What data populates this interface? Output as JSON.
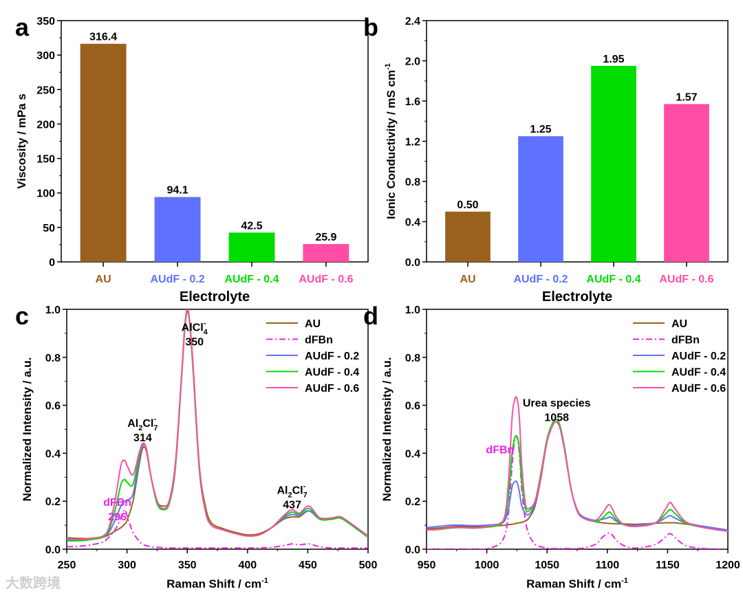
{
  "colors": {
    "AU": "#9A611E",
    "AUdF - 0.2": "#5F72FF",
    "AUdF - 0.4": "#00DD00",
    "AUdF - 0.6": "#FF4DA6",
    "dFBn": "#EE22EE",
    "axis": "#000000"
  },
  "watermark": "大数跨境",
  "chart_data": [
    {
      "panel": "a",
      "type": "bar",
      "categories": [
        "AU",
        "AUdF - 0.2",
        "AUdF - 0.4",
        "AUdF - 0.6"
      ],
      "values": [
        316.4,
        94.1,
        42.5,
        25.9
      ],
      "value_labels": [
        "316.4",
        "94.1",
        "42.5",
        "25.9"
      ],
      "xlabel": "Electrolyte",
      "ylabel": "Viscosity / mPa s",
      "ylim": [
        0,
        350
      ],
      "yticks": [
        0,
        50,
        100,
        150,
        200,
        250,
        300,
        350
      ],
      "ytick_labels": [
        "0",
        "50",
        "100",
        "150",
        "200",
        "250",
        "300",
        "350"
      ]
    },
    {
      "panel": "b",
      "type": "bar",
      "categories": [
        "AU",
        "AUdF - 0.2",
        "AUdF - 0.4",
        "AUdF - 0.6"
      ],
      "values": [
        0.5,
        1.25,
        1.95,
        1.57
      ],
      "value_labels": [
        "0.50",
        "1.25",
        "1.95",
        "1.57"
      ],
      "xlabel": "Electrolyte",
      "ylabel": "Ionic Conductivity / mS cm",
      "ylabel_sup": "-1",
      "ylim": [
        0,
        2.4
      ],
      "yticks": [
        0,
        0.4,
        0.8,
        1.2,
        1.6,
        2.0,
        2.4
      ],
      "ytick_labels": [
        "0.0",
        "0.4",
        "0.8",
        "1.2",
        "1.6",
        "2.0",
        "2.4"
      ]
    },
    {
      "panel": "c",
      "type": "line",
      "xlabel": "Raman Shift / cm",
      "xlabel_sup": "-1",
      "ylabel": "Normalized Intensity / a.u.",
      "xlim": [
        250,
        500
      ],
      "ylim": [
        0,
        1.0
      ],
      "xticks": [
        250,
        300,
        350,
        400,
        450,
        500
      ],
      "xtick_labels": [
        "250",
        "300",
        "350",
        "400",
        "450",
        "500"
      ],
      "yticks": [
        0,
        0.2,
        0.4,
        0.6,
        0.8,
        1.0
      ],
      "ytick_labels": [
        "0.0",
        "0.2",
        "0.4",
        "0.6",
        "0.8",
        "1.0"
      ],
      "legend": "top-right",
      "x": [
        250,
        260,
        270,
        280,
        285,
        290,
        295,
        298,
        300,
        305,
        310,
        313,
        316,
        320,
        325,
        330,
        335,
        340,
        345,
        348,
        350,
        352,
        355,
        360,
        365,
        370,
        380,
        390,
        400,
        410,
        420,
        430,
        437,
        443,
        451,
        460,
        470,
        477,
        485,
        500
      ],
      "series": [
        {
          "name": "AU",
          "style": "solid",
          "values": [
            0.048,
            0.045,
            0.045,
            0.05,
            0.06,
            0.075,
            0.09,
            0.105,
            0.12,
            0.2,
            0.35,
            0.42,
            0.41,
            0.3,
            0.2,
            0.18,
            0.2,
            0.35,
            0.7,
            0.93,
            0.99,
            0.95,
            0.75,
            0.35,
            0.18,
            0.11,
            0.085,
            0.07,
            0.06,
            0.065,
            0.09,
            0.125,
            0.135,
            0.135,
            0.16,
            0.13,
            0.13,
            0.135,
            0.11,
            0.055
          ]
        },
        {
          "name": "dFBn",
          "style": "dashdot",
          "values": [
            0.01,
            0.012,
            0.018,
            0.03,
            0.05,
            0.08,
            0.13,
            0.165,
            0.14,
            0.07,
            0.035,
            0.02,
            0.015,
            0.01,
            0.008,
            0.006,
            0.005,
            0.005,
            0.005,
            0.005,
            0.005,
            0.005,
            0.005,
            0.005,
            0.005,
            0.005,
            0.005,
            0.005,
            0.005,
            0.006,
            0.008,
            0.015,
            0.022,
            0.018,
            0.022,
            0.01,
            0.005,
            0.005,
            0.005,
            0.005
          ]
        },
        {
          "name": "AUdF - 0.2",
          "style": "solid",
          "values": [
            0.04,
            0.04,
            0.045,
            0.05,
            0.07,
            0.12,
            0.18,
            0.2,
            0.205,
            0.23,
            0.37,
            0.43,
            0.42,
            0.3,
            0.19,
            0.165,
            0.19,
            0.34,
            0.7,
            0.93,
            0.99,
            0.95,
            0.74,
            0.34,
            0.16,
            0.1,
            0.08,
            0.065,
            0.055,
            0.06,
            0.09,
            0.13,
            0.145,
            0.14,
            0.16,
            0.125,
            0.125,
            0.13,
            0.105,
            0.05
          ]
        },
        {
          "name": "AUdF - 0.4",
          "style": "solid",
          "values": [
            0.035,
            0.035,
            0.04,
            0.05,
            0.08,
            0.16,
            0.27,
            0.29,
            0.28,
            0.27,
            0.39,
            0.44,
            0.42,
            0.3,
            0.19,
            0.165,
            0.19,
            0.33,
            0.69,
            0.92,
            0.99,
            0.94,
            0.73,
            0.33,
            0.16,
            0.1,
            0.08,
            0.065,
            0.055,
            0.06,
            0.09,
            0.135,
            0.155,
            0.145,
            0.17,
            0.125,
            0.125,
            0.13,
            0.105,
            0.05
          ]
        },
        {
          "name": "AUdF - 0.6",
          "style": "solid",
          "values": [
            0.045,
            0.04,
            0.045,
            0.055,
            0.09,
            0.2,
            0.35,
            0.37,
            0.35,
            0.31,
            0.4,
            0.44,
            0.42,
            0.3,
            0.2,
            0.17,
            0.195,
            0.34,
            0.7,
            0.93,
            1.0,
            0.95,
            0.75,
            0.34,
            0.16,
            0.1,
            0.08,
            0.065,
            0.055,
            0.06,
            0.09,
            0.14,
            0.165,
            0.15,
            0.18,
            0.13,
            0.13,
            0.135,
            0.11,
            0.055
          ]
        }
      ],
      "annotations": [
        {
          "main": "AlCl",
          "sub": "4",
          "sup": "-",
          "value": "350",
          "x": 356,
          "y": 0.91,
          "color": "#000000"
        },
        {
          "main": "Al",
          "sub2": "2",
          "main2": "Cl",
          "sub": "7",
          "sup": "-",
          "value": "314",
          "x": 313,
          "y": 0.51,
          "color": "#000000"
        },
        {
          "main": "Al",
          "sub2": "2",
          "main2": "Cl",
          "sub": "7",
          "sup": "-",
          "value": "437",
          "x": 437,
          "y": 0.23,
          "color": "#000000"
        },
        {
          "main": "dFBn",
          "value": "296",
          "x": 292,
          "y": 0.18,
          "color": "#EE22EE"
        }
      ]
    },
    {
      "panel": "d",
      "type": "line",
      "xlabel": "Raman Shift / cm",
      "xlabel_sup": "-1",
      "ylabel": "Normalized Intensity / a.u.",
      "xlim": [
        950,
        1200
      ],
      "ylim": [
        0,
        1.0
      ],
      "xticks": [
        950,
        1000,
        1050,
        1100,
        1150,
        1200
      ],
      "xtick_labels": [
        "950",
        "1000",
        "1050",
        "1100",
        "1150",
        "1200"
      ],
      "yticks": [
        0,
        0.2,
        0.4,
        0.6,
        0.8,
        1.0
      ],
      "ytick_labels": [
        "0.0",
        "0.2",
        "0.4",
        "0.6",
        "0.8",
        "1.0"
      ],
      "legend": "top-right",
      "x": [
        950,
        960,
        970,
        980,
        990,
        1000,
        1010,
        1015,
        1018,
        1021,
        1023,
        1025,
        1027,
        1029,
        1032,
        1035,
        1040,
        1045,
        1050,
        1055,
        1058,
        1061,
        1065,
        1070,
        1075,
        1080,
        1090,
        1096,
        1100,
        1102,
        1104,
        1108,
        1115,
        1125,
        1140,
        1148,
        1152,
        1156,
        1165,
        1180,
        1200
      ],
      "series": [
        {
          "name": "AU",
          "style": "solid",
          "values": [
            0.085,
            0.088,
            0.093,
            0.095,
            0.093,
            0.095,
            0.098,
            0.1,
            0.102,
            0.104,
            0.106,
            0.108,
            0.11,
            0.112,
            0.118,
            0.13,
            0.18,
            0.3,
            0.45,
            0.52,
            0.53,
            0.5,
            0.4,
            0.25,
            0.16,
            0.13,
            0.115,
            0.11,
            0.108,
            0.107,
            0.107,
            0.106,
            0.105,
            0.104,
            0.108,
            0.11,
            0.11,
            0.11,
            0.105,
            0.095,
            0.08
          ]
        },
        {
          "name": "dFBn",
          "style": "dashdot",
          "values": [
            0,
            0,
            0,
            0,
            0,
            0.002,
            0.02,
            0.06,
            0.15,
            0.35,
            0.45,
            0.47,
            0.4,
            0.25,
            0.12,
            0.06,
            0.02,
            0.01,
            0.005,
            0.003,
            0.003,
            0.003,
            0.003,
            0.003,
            0.003,
            0.005,
            0.02,
            0.05,
            0.065,
            0.068,
            0.06,
            0.035,
            0.012,
            0.005,
            0.02,
            0.05,
            0.065,
            0.05,
            0.015,
            0.003,
            0
          ]
        },
        {
          "name": "AUdF - 0.2",
          "style": "solid",
          "values": [
            0.09,
            0.095,
            0.1,
            0.1,
            0.098,
            0.1,
            0.105,
            0.12,
            0.17,
            0.26,
            0.28,
            0.28,
            0.24,
            0.18,
            0.15,
            0.145,
            0.19,
            0.31,
            0.45,
            0.52,
            0.53,
            0.5,
            0.4,
            0.25,
            0.165,
            0.135,
            0.12,
            0.125,
            0.13,
            0.135,
            0.13,
            0.115,
            0.1,
            0.1,
            0.11,
            0.13,
            0.14,
            0.13,
            0.11,
            0.095,
            0.08
          ]
        },
        {
          "name": "AUdF - 0.4",
          "style": "solid",
          "values": [
            0.08,
            0.082,
            0.088,
            0.09,
            0.088,
            0.092,
            0.1,
            0.13,
            0.22,
            0.4,
            0.46,
            0.47,
            0.42,
            0.28,
            0.17,
            0.16,
            0.2,
            0.32,
            0.46,
            0.53,
            0.54,
            0.51,
            0.41,
            0.25,
            0.16,
            0.13,
            0.115,
            0.13,
            0.15,
            0.155,
            0.145,
            0.12,
            0.1,
            0.095,
            0.11,
            0.145,
            0.165,
            0.15,
            0.11,
            0.09,
            0.075
          ]
        },
        {
          "name": "AUdF - 0.6",
          "style": "solid",
          "values": [
            0.08,
            0.083,
            0.09,
            0.09,
            0.088,
            0.095,
            0.105,
            0.14,
            0.28,
            0.55,
            0.62,
            0.63,
            0.55,
            0.35,
            0.19,
            0.17,
            0.2,
            0.31,
            0.45,
            0.52,
            0.53,
            0.5,
            0.4,
            0.25,
            0.16,
            0.13,
            0.12,
            0.15,
            0.18,
            0.185,
            0.17,
            0.13,
            0.1,
            0.095,
            0.11,
            0.165,
            0.195,
            0.17,
            0.115,
            0.09,
            0.075
          ]
        }
      ],
      "annotations": [
        {
          "main": "Urea species",
          "value": "1058",
          "x": 1058,
          "y": 0.595,
          "color": "#000000"
        },
        {
          "main": "dFBn",
          "x": 1011,
          "y": 0.4,
          "color": "#EE22EE"
        }
      ]
    }
  ]
}
